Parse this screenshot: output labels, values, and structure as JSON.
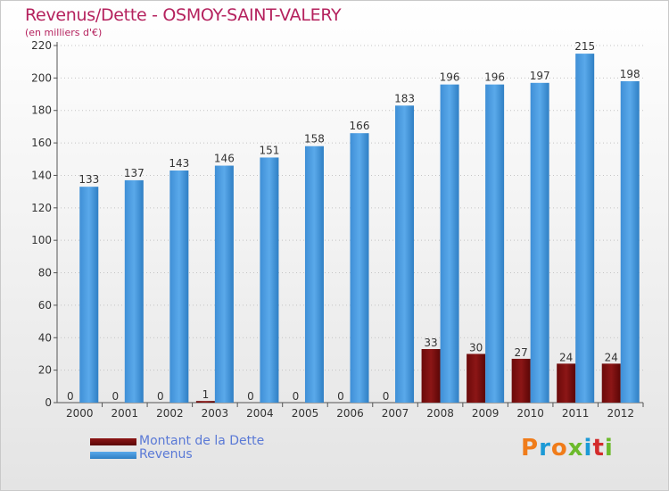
{
  "title": "Revenus/Dette - OSMOY-SAINT-VALERY",
  "subtitle": "(en milliers d'€)",
  "brand": "Proxiti",
  "brand_colors": [
    "#f07c1a",
    "#1c9ad6",
    "#f07c1a",
    "#6cba2b",
    "#1c9ad6",
    "#d32b2b",
    "#6cba2b"
  ],
  "colors": {
    "debt": "#7a0c0c",
    "revenue": "#4a9ee0",
    "grid": "#c4c4c4",
    "axis": "#555555",
    "tick_text": "#333333",
    "title": "#b5225e"
  },
  "chart_data": {
    "type": "bar",
    "categories": [
      "2000",
      "2001",
      "2002",
      "2003",
      "2004",
      "2005",
      "2006",
      "2007",
      "2008",
      "2009",
      "2010",
      "2011",
      "2012"
    ],
    "series": [
      {
        "name": "Montant de la Dette",
        "values": [
          0,
          0,
          0,
          1,
          0,
          0,
          0,
          0,
          33,
          30,
          27,
          24,
          24
        ]
      },
      {
        "name": "Revenus",
        "values": [
          133,
          137,
          143,
          146,
          151,
          158,
          166,
          183,
          196,
          196,
          197,
          215,
          198
        ]
      }
    ],
    "ylim": [
      0,
      220
    ],
    "yticks": [
      0,
      20,
      40,
      60,
      80,
      100,
      120,
      140,
      160,
      180,
      200,
      220
    ],
    "grid": true,
    "legend_position": "bottom-left"
  }
}
